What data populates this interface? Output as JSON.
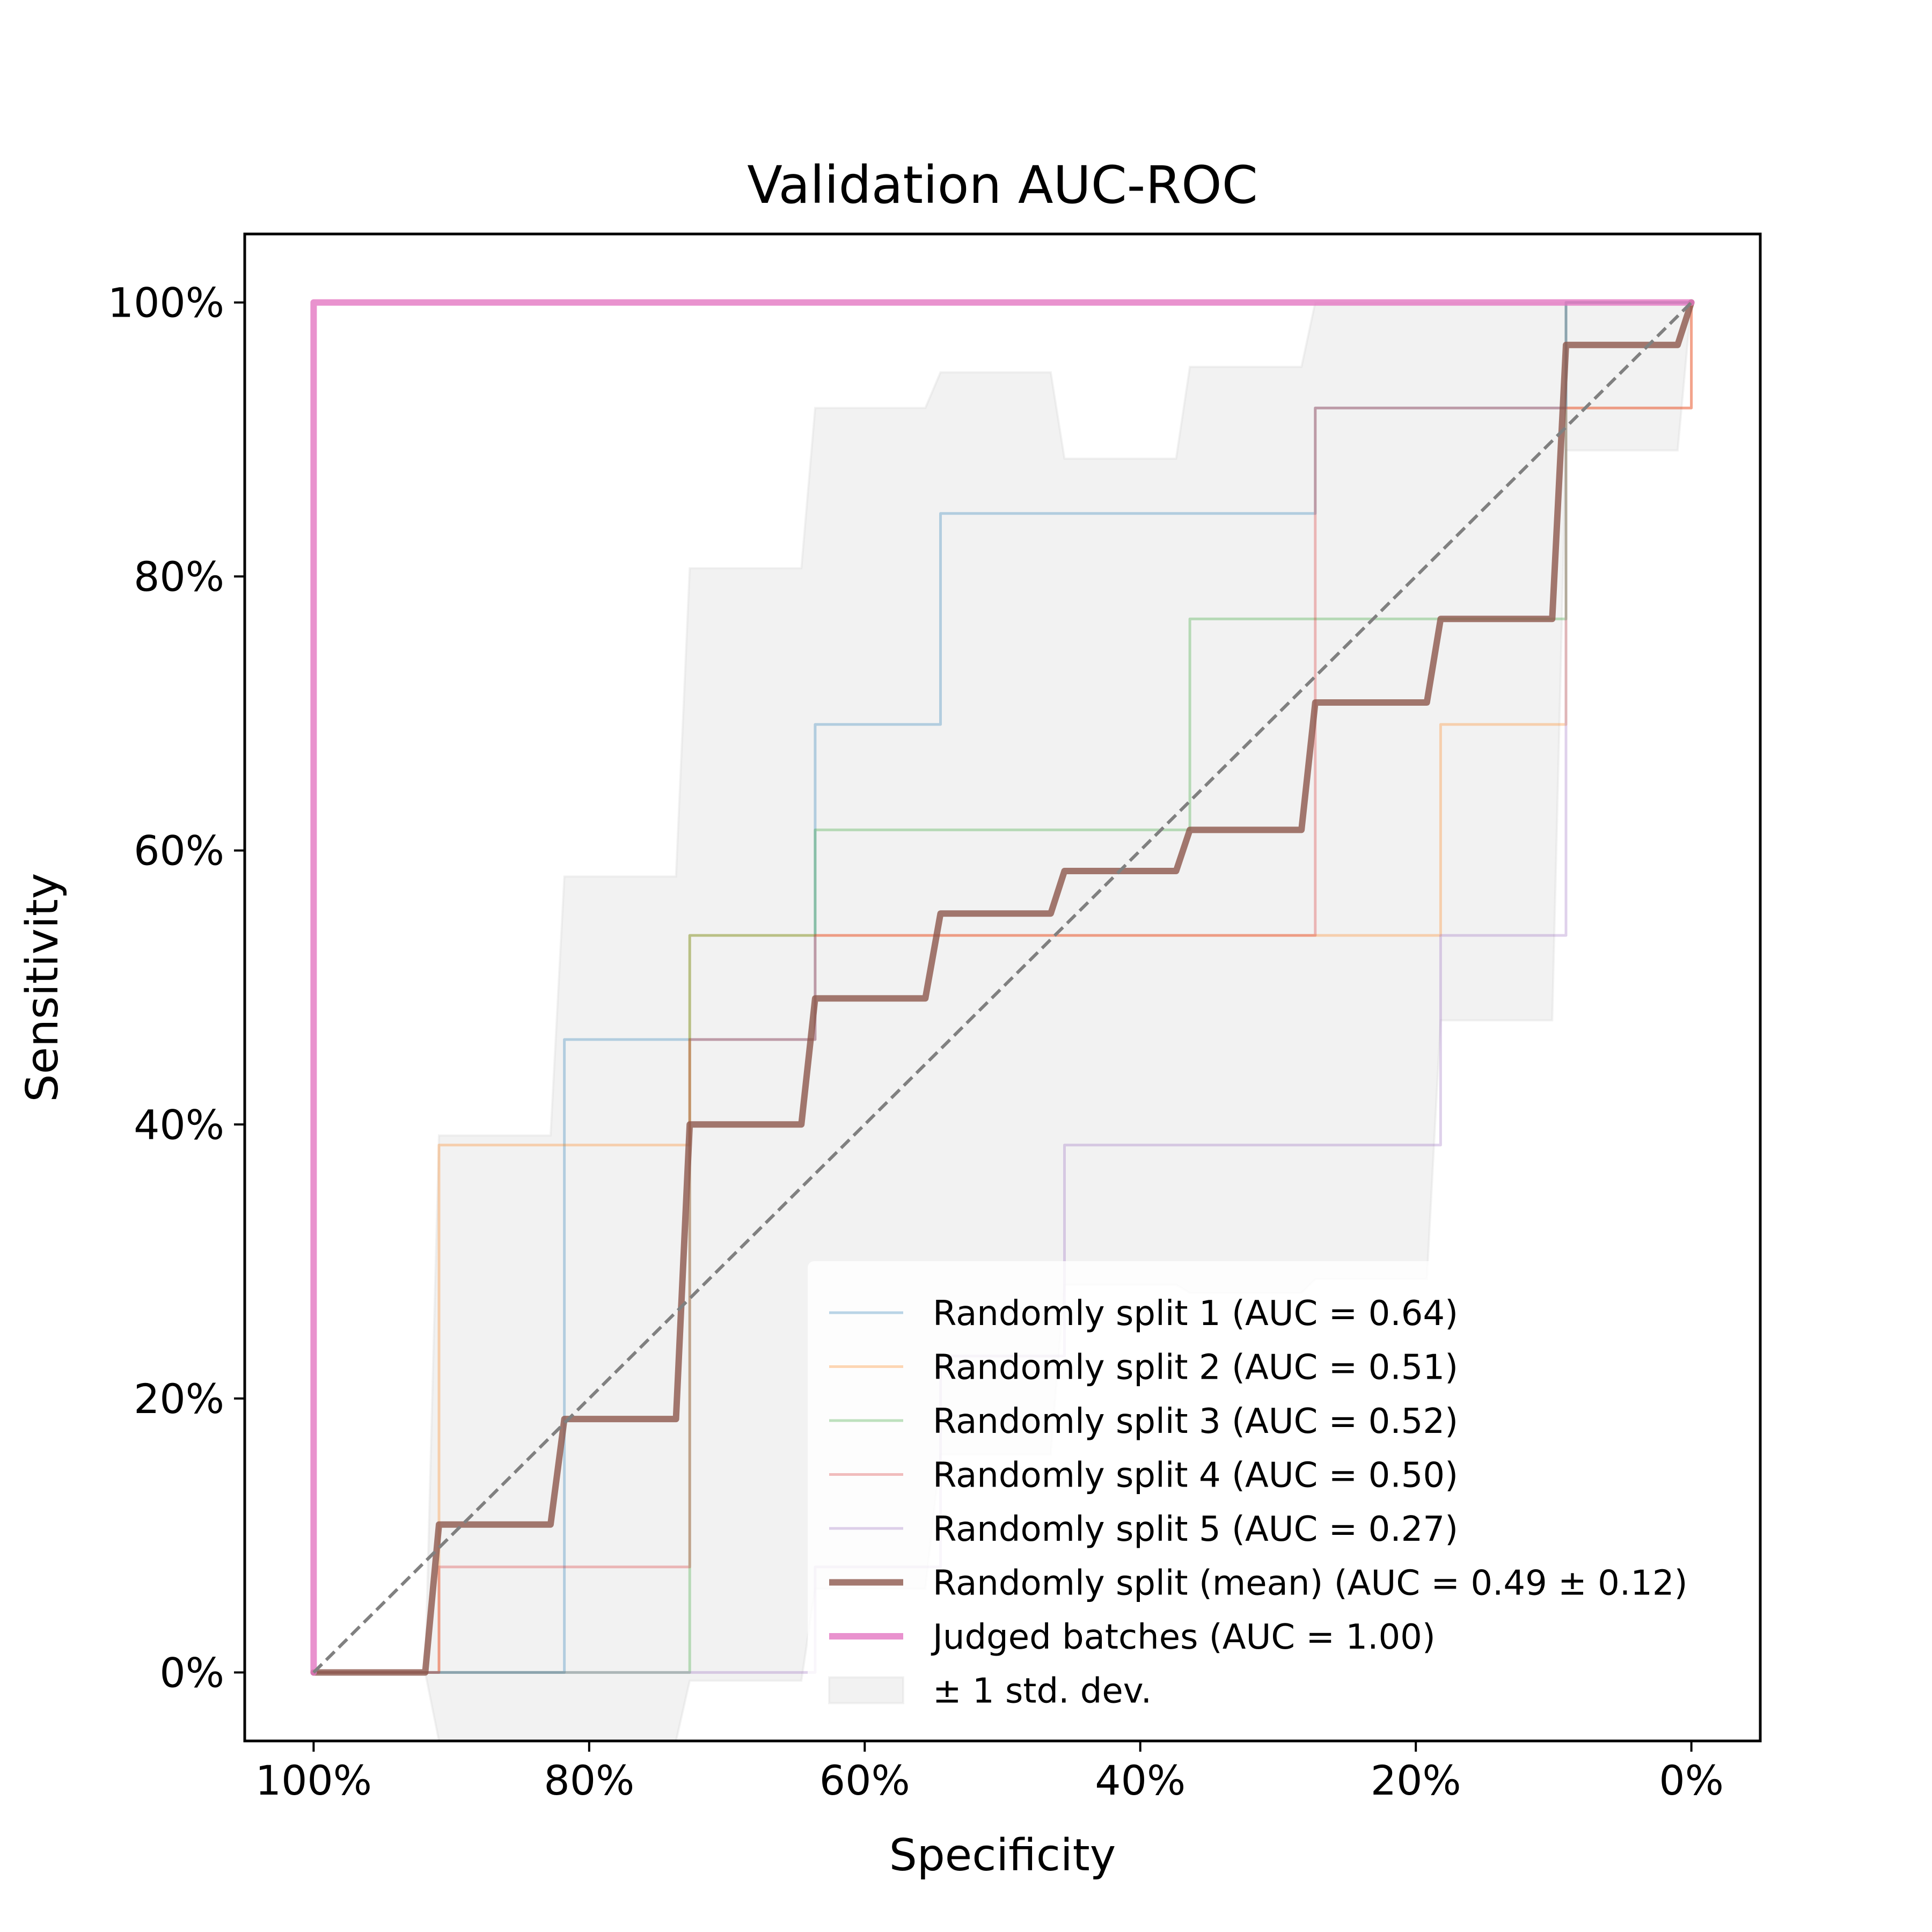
{
  "chart_data": {
    "type": "line",
    "title": "Validation AUC-ROC",
    "xlabel": "Specificity",
    "ylabel": "Sensitivity",
    "x_inverted": true,
    "xlim": [
      1.05,
      -0.05
    ],
    "ylim": [
      -0.05,
      1.05
    ],
    "xticks": [
      {
        "value": 1.0,
        "label": "100%"
      },
      {
        "value": 0.8,
        "label": "80%"
      },
      {
        "value": 0.6,
        "label": "60%"
      },
      {
        "value": 0.4,
        "label": "40%"
      },
      {
        "value": 0.2,
        "label": "20%"
      },
      {
        "value": 0.0,
        "label": "0%"
      }
    ],
    "yticks": [
      {
        "value": 0.0,
        "label": "0%"
      },
      {
        "value": 0.2,
        "label": "20%"
      },
      {
        "value": 0.4,
        "label": "40%"
      },
      {
        "value": 0.6,
        "label": "60%"
      },
      {
        "value": 0.8,
        "label": "80%"
      },
      {
        "value": 1.0,
        "label": "100%"
      }
    ],
    "grid": false,
    "legend_position": "lower-right",
    "diagonal": {
      "x": [
        1.0,
        0.0
      ],
      "y": [
        0.0,
        1.0
      ],
      "color": "#808080",
      "style": "dashed"
    },
    "series": [
      {
        "name": "Randomly split 1 (AUC = 0.64)",
        "color": "#1f77b4",
        "opacity": 0.3,
        "width": "thin",
        "points": [
          [
            1.0,
            0.0
          ],
          [
            0.909,
            0.0
          ],
          [
            0.818,
            0.0
          ],
          [
            0.818,
            0.077
          ],
          [
            0.818,
            0.462
          ],
          [
            0.727,
            0.462
          ],
          [
            0.636,
            0.462
          ],
          [
            0.636,
            0.692
          ],
          [
            0.545,
            0.692
          ],
          [
            0.545,
            0.846
          ],
          [
            0.455,
            0.846
          ],
          [
            0.364,
            0.846
          ],
          [
            0.273,
            0.846
          ],
          [
            0.273,
            0.923
          ],
          [
            0.182,
            0.923
          ],
          [
            0.091,
            0.923
          ],
          [
            0.091,
            1.0
          ],
          [
            0.0,
            1.0
          ]
        ]
      },
      {
        "name": "Randomly split 2 (AUC = 0.51)",
        "color": "#ff7f0e",
        "opacity": 0.3,
        "width": "thin",
        "points": [
          [
            1.0,
            0.0
          ],
          [
            0.909,
            0.0
          ],
          [
            0.909,
            0.385
          ],
          [
            0.818,
            0.385
          ],
          [
            0.727,
            0.385
          ],
          [
            0.727,
            0.538
          ],
          [
            0.636,
            0.538
          ],
          [
            0.182,
            0.538
          ],
          [
            0.182,
            0.692
          ],
          [
            0.091,
            0.692
          ],
          [
            0.091,
            0.923
          ],
          [
            0.0,
            0.923
          ],
          [
            0.0,
            1.0
          ]
        ]
      },
      {
        "name": "Randomly split 3 (AUC = 0.52)",
        "color": "#2ca02c",
        "opacity": 0.3,
        "width": "thin",
        "points": [
          [
            1.0,
            0.0
          ],
          [
            0.727,
            0.0
          ],
          [
            0.727,
            0.538
          ],
          [
            0.636,
            0.538
          ],
          [
            0.636,
            0.615
          ],
          [
            0.364,
            0.615
          ],
          [
            0.364,
            0.769
          ],
          [
            0.091,
            0.769
          ],
          [
            0.091,
            1.0
          ],
          [
            0.0,
            1.0
          ]
        ]
      },
      {
        "name": "Randomly split 4 (AUC = 0.50)",
        "color": "#d62728",
        "opacity": 0.3,
        "width": "thin",
        "points": [
          [
            1.0,
            0.0
          ],
          [
            0.909,
            0.0
          ],
          [
            0.909,
            0.077
          ],
          [
            0.727,
            0.077
          ],
          [
            0.727,
            0.462
          ],
          [
            0.636,
            0.462
          ],
          [
            0.636,
            0.538
          ],
          [
            0.273,
            0.538
          ],
          [
            0.273,
            0.923
          ],
          [
            0.0,
            0.923
          ],
          [
            0.0,
            1.0
          ]
        ]
      },
      {
        "name": "Randomly split 5 (AUC = 0.27)",
        "color": "#9467bd",
        "opacity": 0.3,
        "width": "thin",
        "points": [
          [
            1.0,
            0.0
          ],
          [
            0.636,
            0.0
          ],
          [
            0.636,
            0.077
          ],
          [
            0.545,
            0.077
          ],
          [
            0.545,
            0.231
          ],
          [
            0.455,
            0.231
          ],
          [
            0.455,
            0.385
          ],
          [
            0.182,
            0.385
          ],
          [
            0.182,
            0.538
          ],
          [
            0.091,
            0.538
          ],
          [
            0.091,
            1.0
          ],
          [
            0.0,
            1.0
          ]
        ]
      },
      {
        "name": "Randomly split (mean) (AUC = 0.49 ± 0.12)",
        "color": "#8c564b",
        "opacity": 0.8,
        "width": "thick",
        "points": [
          [
            1.0,
            0.0
          ],
          [
            0.919,
            0.0
          ],
          [
            0.909,
            0.108
          ],
          [
            0.828,
            0.108
          ],
          [
            0.818,
            0.185
          ],
          [
            0.737,
            0.185
          ],
          [
            0.727,
            0.4
          ],
          [
            0.646,
            0.4
          ],
          [
            0.636,
            0.492
          ],
          [
            0.556,
            0.492
          ],
          [
            0.545,
            0.554
          ],
          [
            0.465,
            0.554
          ],
          [
            0.455,
            0.585
          ],
          [
            0.374,
            0.585
          ],
          [
            0.364,
            0.615
          ],
          [
            0.283,
            0.615
          ],
          [
            0.273,
            0.708
          ],
          [
            0.192,
            0.708
          ],
          [
            0.182,
            0.769
          ],
          [
            0.101,
            0.769
          ],
          [
            0.091,
            0.969
          ],
          [
            0.01,
            0.969
          ],
          [
            0.0,
            1.0
          ]
        ]
      },
      {
        "name": "Judged batches (AUC = 1.00)",
        "color": "#e377c2",
        "opacity": 0.8,
        "width": "thick",
        "points": [
          [
            1.0,
            0.0
          ],
          [
            1.0,
            1.0
          ],
          [
            0.0,
            1.0
          ]
        ]
      }
    ],
    "std_band": {
      "name": "± 1 std. dev.",
      "color": "#d3d3d3",
      "opacity": 0.3,
      "upper": [
        [
          1.0,
          0.0
        ],
        [
          0.919,
          0.0
        ],
        [
          0.909,
          0.392
        ],
        [
          0.828,
          0.392
        ],
        [
          0.818,
          0.581
        ],
        [
          0.737,
          0.581
        ],
        [
          0.727,
          0.806
        ],
        [
          0.646,
          0.806
        ],
        [
          0.636,
          0.923
        ],
        [
          0.556,
          0.923
        ],
        [
          0.545,
          0.949
        ],
        [
          0.465,
          0.949
        ],
        [
          0.455,
          0.886
        ],
        [
          0.374,
          0.886
        ],
        [
          0.364,
          0.953
        ],
        [
          0.283,
          0.953
        ],
        [
          0.273,
          1.0
        ],
        [
          0.0,
          1.0
        ]
      ],
      "lower": [
        [
          1.0,
          0.0
        ],
        [
          0.919,
          0.0
        ],
        [
          0.909,
          -0.176
        ],
        [
          0.828,
          -0.176
        ],
        [
          0.818,
          -0.211
        ],
        [
          0.737,
          -0.211
        ],
        [
          0.727,
          -0.006
        ],
        [
          0.646,
          -0.006
        ],
        [
          0.636,
          0.061
        ],
        [
          0.556,
          0.061
        ],
        [
          0.545,
          0.159
        ],
        [
          0.465,
          0.159
        ],
        [
          0.455,
          0.283
        ],
        [
          0.374,
          0.283
        ],
        [
          0.364,
          0.277
        ],
        [
          0.283,
          0.277
        ],
        [
          0.273,
          0.287
        ],
        [
          0.192,
          0.287
        ],
        [
          0.182,
          0.476
        ],
        [
          0.101,
          0.476
        ],
        [
          0.091,
          0.892
        ],
        [
          0.01,
          0.892
        ],
        [
          0.0,
          1.0
        ]
      ]
    }
  }
}
